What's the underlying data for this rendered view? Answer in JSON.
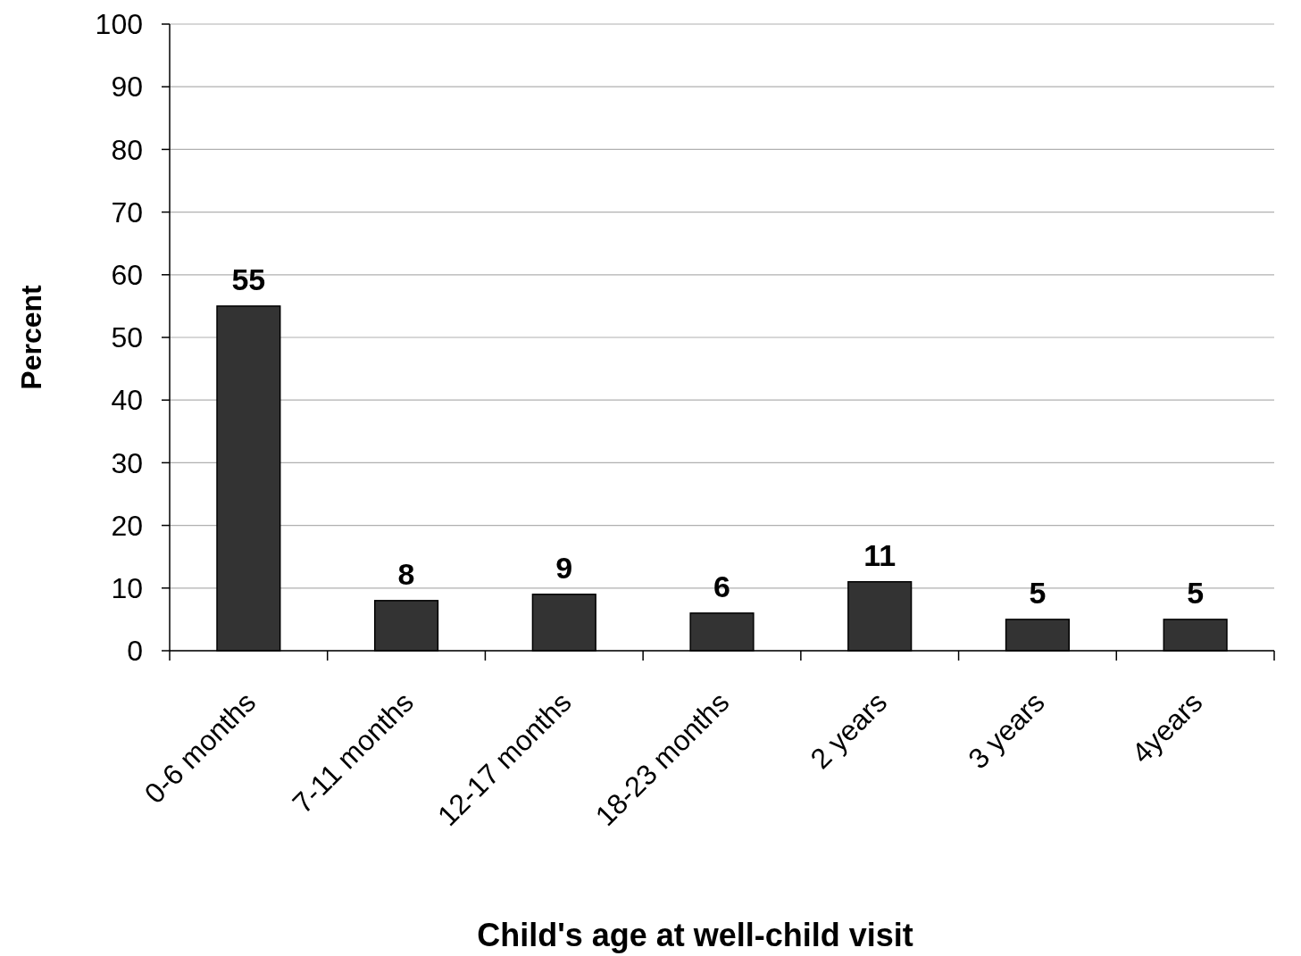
{
  "chart_data": {
    "type": "bar",
    "xlabel": "Child's age at well-child visit",
    "ylabel": "Percent",
    "categories": [
      "0-6 months",
      "7-11 months",
      "12-17 months",
      "18-23 months",
      "2 years",
      "3 years",
      "4years"
    ],
    "values": [
      55,
      8,
      9,
      6,
      11,
      5,
      5
    ],
    "color": "#333333",
    "ylim": [
      0,
      100
    ],
    "yticks": [
      0,
      10,
      20,
      30,
      40,
      50,
      60,
      70,
      80,
      90,
      100
    ],
    "grid": "y",
    "data_labels": true
  }
}
